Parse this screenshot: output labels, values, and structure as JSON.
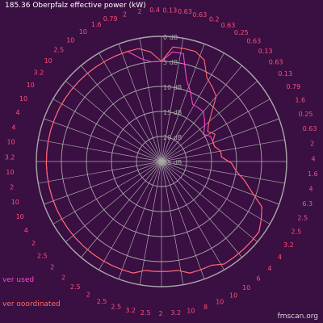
{
  "chart_data": {
    "type": "polar",
    "title": "185.36 Oberpfalz effective power (kW)",
    "credit": "fmscan.org",
    "legend": [
      {
        "label": "ver used",
        "color": "#ff44cc"
      },
      {
        "label": "ver ooordinated",
        "color": "#ff6b6b"
      }
    ],
    "rings_db": [
      "0 dB",
      "5 dB",
      "10 dB",
      "15 dB",
      "20 dB",
      "25 dB"
    ],
    "colors": {
      "background": "#3a0f42",
      "grid": "#a8a8a8",
      "used": "#ff44cc",
      "coordinated": "#ff6b6b",
      "title": "#ffffff",
      "labels": "#ff4f7a"
    },
    "outer_labels": [
      "2",
      "2",
      "0.4",
      "0.13",
      "0.63",
      "0.63",
      "0.2",
      "0.63",
      "0.25",
      "0.63",
      "0.13",
      "0.63",
      "0.13",
      "0.79",
      "1.6",
      "0.25",
      "0.63",
      "2",
      "4",
      "1.6",
      "4",
      "6.3",
      "2.5",
      "2.5",
      "3.2",
      "4",
      "4",
      "6",
      "10",
      "10",
      "10",
      "8",
      "10",
      "3.2",
      "2",
      "2.5",
      "3.2",
      "2.5",
      "2.5",
      "2",
      "2.5",
      "2",
      "2",
      "2.5",
      "2",
      "4",
      "10",
      "10",
      "2",
      "10",
      "3.2",
      "10",
      "4",
      "4",
      "10",
      "10",
      "3.2",
      "10",
      "2.5",
      "10",
      "10",
      "1.6",
      "0.79"
    ],
    "series": [
      {
        "name": "ver used",
        "color": "#ff44cc",
        "values_db": [
          5,
          3,
          3,
          8,
          10,
          12,
          12,
          12,
          13,
          14,
          15,
          14,
          14,
          14,
          13,
          13,
          11,
          10,
          8,
          6,
          3,
          2,
          1,
          1,
          1,
          1,
          1,
          2,
          2,
          2,
          3,
          3,
          3,
          3,
          2,
          2,
          2,
          2,
          2,
          2,
          2,
          2,
          2,
          2,
          2,
          2,
          2,
          2,
          2,
          2,
          2,
          2,
          2,
          2,
          2,
          2,
          2,
          2,
          2,
          2,
          2,
          4,
          5
        ]
      },
      {
        "name": "ver ooordinated",
        "color": "#ff6b6b",
        "values_db": [
          5,
          2,
          2,
          2,
          3,
          6,
          7,
          8,
          11,
          13,
          14,
          13,
          14,
          14,
          13,
          13,
          11,
          10,
          8,
          6,
          3,
          2,
          1,
          1,
          1,
          1,
          1,
          2,
          2,
          2,
          3,
          3,
          3,
          3,
          2,
          2,
          2,
          2,
          2,
          2,
          2,
          2,
          2,
          2,
          2,
          2,
          2,
          2,
          2,
          2,
          2,
          2,
          2,
          2,
          2,
          2,
          2,
          2,
          2,
          2,
          2,
          2,
          3
        ]
      }
    ]
  }
}
